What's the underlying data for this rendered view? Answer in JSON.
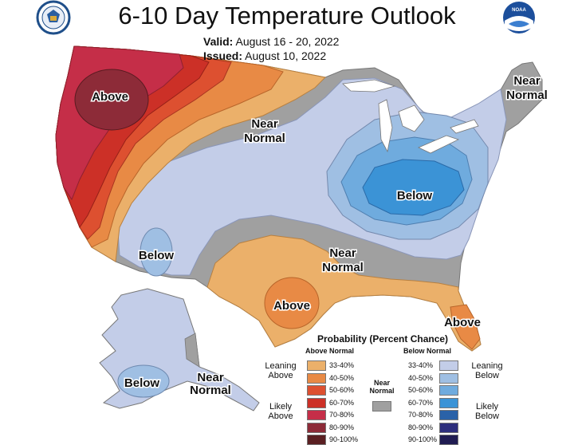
{
  "header": {
    "title": "6-10 Day Temperature Outlook",
    "valid_label": "Valid:",
    "valid_value": "August 16 - 20, 2022",
    "issued_label": "Issued:",
    "issued_value": "August 10, 2022"
  },
  "logos": {
    "left": "department-of-commerce-seal",
    "right": "noaa-logo",
    "right_text": "NOAA"
  },
  "map_labels": {
    "above_northwest": "Above",
    "near_normal_north": [
      "Near",
      "Normal"
    ],
    "near_normal_northeast": [
      "Near",
      "Normal"
    ],
    "below_east": "Below",
    "below_southwest": "Below",
    "near_normal_south": [
      "Near",
      "Normal"
    ],
    "above_texas": "Above",
    "above_florida": "Above",
    "below_alaska": "Below",
    "near_normal_alaska": [
      "Near",
      "Normal"
    ]
  },
  "legend": {
    "title": "Probability (Percent Chance)",
    "above_header": "Above Normal",
    "below_header": "Below Normal",
    "near_normal_label": [
      "Near",
      "Normal"
    ],
    "near_normal_color": "#a0a0a0",
    "above_groups": [
      [
        "Leaning",
        "Above"
      ],
      [
        "Likely",
        "Above"
      ]
    ],
    "below_groups": [
      [
        "Leaning",
        "Below"
      ],
      [
        "Likely",
        "Below"
      ]
    ],
    "above": [
      {
        "range": "33-40%",
        "color": "#ebb06a"
      },
      {
        "range": "40-50%",
        "color": "#e88a45"
      },
      {
        "range": "50-60%",
        "color": "#dd5030"
      },
      {
        "range": "60-70%",
        "color": "#cc3027"
      },
      {
        "range": "70-80%",
        "color": "#c52e48"
      },
      {
        "range": "80-90%",
        "color": "#8d2b38"
      },
      {
        "range": "90-100%",
        "color": "#5a1f22"
      }
    ],
    "below": [
      {
        "range": "33-40%",
        "color": "#c3cde8"
      },
      {
        "range": "40-50%",
        "color": "#9fbfe3"
      },
      {
        "range": "50-60%",
        "color": "#6fabde"
      },
      {
        "range": "60-70%",
        "color": "#3b93d6"
      },
      {
        "range": "70-80%",
        "color": "#2a62a8"
      },
      {
        "range": "80-90%",
        "color": "#2d2e7c"
      },
      {
        "range": "90-100%",
        "color": "#201c52"
      }
    ]
  }
}
